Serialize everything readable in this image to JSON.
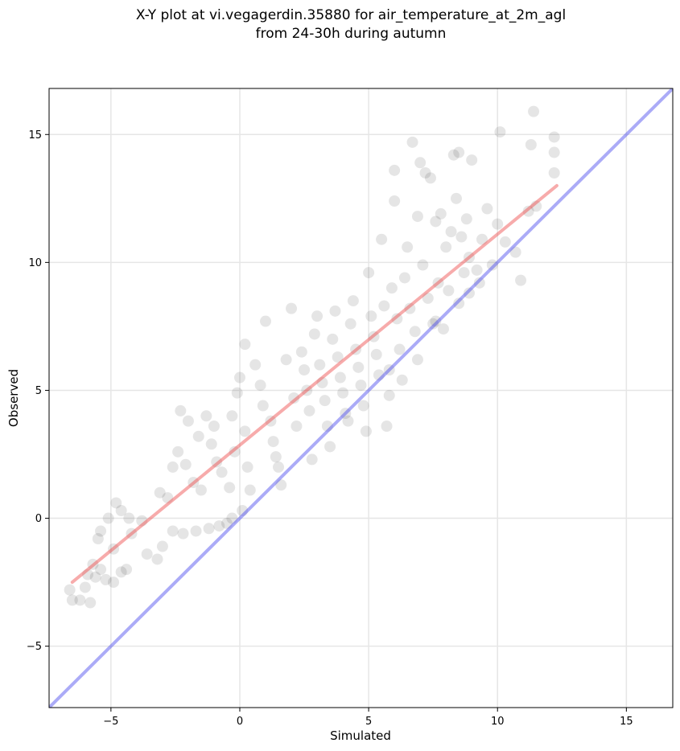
{
  "chart_data": {
    "type": "scatter",
    "title": [
      "X-Y plot at vi.vegagerdin.35880 for air_temperature_at_2m_agl",
      "from 24-30h during autumn"
    ],
    "xlabel": "Simulated",
    "ylabel": "Observed",
    "xlim": [
      -7.4,
      16.8
    ],
    "ylim": [
      -7.4,
      16.8
    ],
    "xticks": [
      -5,
      0,
      5,
      10,
      15
    ],
    "yticks": [
      -5,
      0,
      5,
      10,
      15
    ],
    "xtick_labels": [
      "−5",
      "0",
      "5",
      "10",
      "15"
    ],
    "ytick_labels": [
      "−5",
      "0",
      "5",
      "10",
      "15"
    ],
    "grid": true,
    "colors": {
      "points": "#000000",
      "fit_line": "#ee4444",
      "identity_line": "#4444ee"
    },
    "fit_line": {
      "x": [
        -6.5,
        12.3
      ],
      "y": [
        -2.5,
        13.0
      ]
    },
    "identity_line": {
      "x": [
        -7.4,
        16.8
      ],
      "y": [
        -7.4,
        16.8
      ]
    },
    "points": [
      [
        -6.6,
        -2.8
      ],
      [
        -6.5,
        -3.2
      ],
      [
        -6.2,
        -3.2
      ],
      [
        -6.0,
        -2.7
      ],
      [
        -5.8,
        -3.3
      ],
      [
        -5.9,
        -2.2
      ],
      [
        -5.6,
        -2.3
      ],
      [
        -5.4,
        -2.0
      ],
      [
        -5.7,
        -1.8
      ],
      [
        -5.2,
        -2.4
      ],
      [
        -4.9,
        -2.5
      ],
      [
        -4.6,
        -2.1
      ],
      [
        -4.4,
        -2.0
      ],
      [
        -4.9,
        -1.2
      ],
      [
        -5.5,
        -0.8
      ],
      [
        -5.4,
        -0.5
      ],
      [
        -5.1,
        0.0
      ],
      [
        -4.8,
        0.6
      ],
      [
        -4.6,
        0.3
      ],
      [
        -4.3,
        0.0
      ],
      [
        -4.2,
        -0.6
      ],
      [
        -3.8,
        -0.1
      ],
      [
        -3.6,
        -1.4
      ],
      [
        -3.2,
        -1.6
      ],
      [
        -3.0,
        -1.1
      ],
      [
        -2.6,
        -0.5
      ],
      [
        -2.2,
        -0.6
      ],
      [
        -1.7,
        -0.5
      ],
      [
        -1.2,
        -0.4
      ],
      [
        -0.8,
        -0.3
      ],
      [
        -0.5,
        -0.2
      ],
      [
        -0.3,
        0.0
      ],
      [
        0.1,
        0.3
      ],
      [
        -3.1,
        1.0
      ],
      [
        -2.8,
        0.8
      ],
      [
        -2.6,
        2.0
      ],
      [
        -2.4,
        2.6
      ],
      [
        -2.1,
        2.1
      ],
      [
        -1.8,
        1.4
      ],
      [
        -1.5,
        1.1
      ],
      [
        -2.0,
        3.8
      ],
      [
        -2.3,
        4.2
      ],
      [
        -1.6,
        3.2
      ],
      [
        -1.3,
        4.0
      ],
      [
        -1.0,
        3.6
      ],
      [
        -1.1,
        2.9
      ],
      [
        -0.9,
        2.2
      ],
      [
        -0.7,
        1.8
      ],
      [
        -0.4,
        1.2
      ],
      [
        -0.2,
        2.6
      ],
      [
        0.0,
        5.5
      ],
      [
        -0.1,
        4.9
      ],
      [
        -0.3,
        4.0
      ],
      [
        0.2,
        3.4
      ],
      [
        0.3,
        2.0
      ],
      [
        0.4,
        1.1
      ],
      [
        0.6,
        6.0
      ],
      [
        0.2,
        6.8
      ],
      [
        0.8,
        5.2
      ],
      [
        0.9,
        4.4
      ],
      [
        1.0,
        7.7
      ],
      [
        1.2,
        3.8
      ],
      [
        1.3,
        3.0
      ],
      [
        1.4,
        2.4
      ],
      [
        1.5,
        2.0
      ],
      [
        1.6,
        1.3
      ],
      [
        1.8,
        6.2
      ],
      [
        2.0,
        8.2
      ],
      [
        2.1,
        4.7
      ],
      [
        2.2,
        3.6
      ],
      [
        2.4,
        6.5
      ],
      [
        2.5,
        5.8
      ],
      [
        2.6,
        5.0
      ],
      [
        2.7,
        4.2
      ],
      [
        2.8,
        2.3
      ],
      [
        2.9,
        7.2
      ],
      [
        3.0,
        7.9
      ],
      [
        3.1,
        6.0
      ],
      [
        3.2,
        5.3
      ],
      [
        3.3,
        4.6
      ],
      [
        3.4,
        3.6
      ],
      [
        3.5,
        2.8
      ],
      [
        3.6,
        7.0
      ],
      [
        3.7,
        8.1
      ],
      [
        3.8,
        6.3
      ],
      [
        3.9,
        5.5
      ],
      [
        4.0,
        4.9
      ],
      [
        4.1,
        4.1
      ],
      [
        4.2,
        3.8
      ],
      [
        4.3,
        7.6
      ],
      [
        4.4,
        8.5
      ],
      [
        4.5,
        6.6
      ],
      [
        4.6,
        5.9
      ],
      [
        4.7,
        5.2
      ],
      [
        4.8,
        4.4
      ],
      [
        4.9,
        3.4
      ],
      [
        5.0,
        9.6
      ],
      [
        5.1,
        7.9
      ],
      [
        5.2,
        7.1
      ],
      [
        5.3,
        6.4
      ],
      [
        5.4,
        5.6
      ],
      [
        5.5,
        10.9
      ],
      [
        5.6,
        8.3
      ],
      [
        5.7,
        3.6
      ],
      [
        5.8,
        4.8
      ],
      [
        5.9,
        9.0
      ],
      [
        6.0,
        13.6
      ],
      [
        6.0,
        12.4
      ],
      [
        6.1,
        7.8
      ],
      [
        6.2,
        6.6
      ],
      [
        6.3,
        5.4
      ],
      [
        6.4,
        9.4
      ],
      [
        6.5,
        10.6
      ],
      [
        6.6,
        8.2
      ],
      [
        6.7,
        14.7
      ],
      [
        6.8,
        7.3
      ],
      [
        6.9,
        11.8
      ],
      [
        7.0,
        13.9
      ],
      [
        7.1,
        9.9
      ],
      [
        7.2,
        13.5
      ],
      [
        7.3,
        8.6
      ],
      [
        7.4,
        13.3
      ],
      [
        7.5,
        7.6
      ],
      [
        7.6,
        11.6
      ],
      [
        7.7,
        9.2
      ],
      [
        7.8,
        11.9
      ],
      [
        7.9,
        7.4
      ],
      [
        8.0,
        10.6
      ],
      [
        8.1,
        8.9
      ],
      [
        8.2,
        11.2
      ],
      [
        8.3,
        14.2
      ],
      [
        8.4,
        12.5
      ],
      [
        8.5,
        14.3
      ],
      [
        8.6,
        11.0
      ],
      [
        8.7,
        9.6
      ],
      [
        8.8,
        11.7
      ],
      [
        8.9,
        10.2
      ],
      [
        9.0,
        14.0
      ],
      [
        9.2,
        9.7
      ],
      [
        9.4,
        10.9
      ],
      [
        9.6,
        12.1
      ],
      [
        9.8,
        9.9
      ],
      [
        10.0,
        11.5
      ],
      [
        10.1,
        15.1
      ],
      [
        10.3,
        10.8
      ],
      [
        10.7,
        10.4
      ],
      [
        10.9,
        9.3
      ],
      [
        11.2,
        12.0
      ],
      [
        11.3,
        14.6
      ],
      [
        11.4,
        15.9
      ],
      [
        11.5,
        12.2
      ],
      [
        12.2,
        14.9
      ],
      [
        12.2,
        14.3
      ],
      [
        12.2,
        13.5
      ],
      [
        8.5,
        8.4
      ],
      [
        8.9,
        8.8
      ],
      [
        9.3,
        9.2
      ],
      [
        7.6,
        7.7
      ],
      [
        6.9,
        6.2
      ],
      [
        5.8,
        5.8
      ]
    ]
  }
}
